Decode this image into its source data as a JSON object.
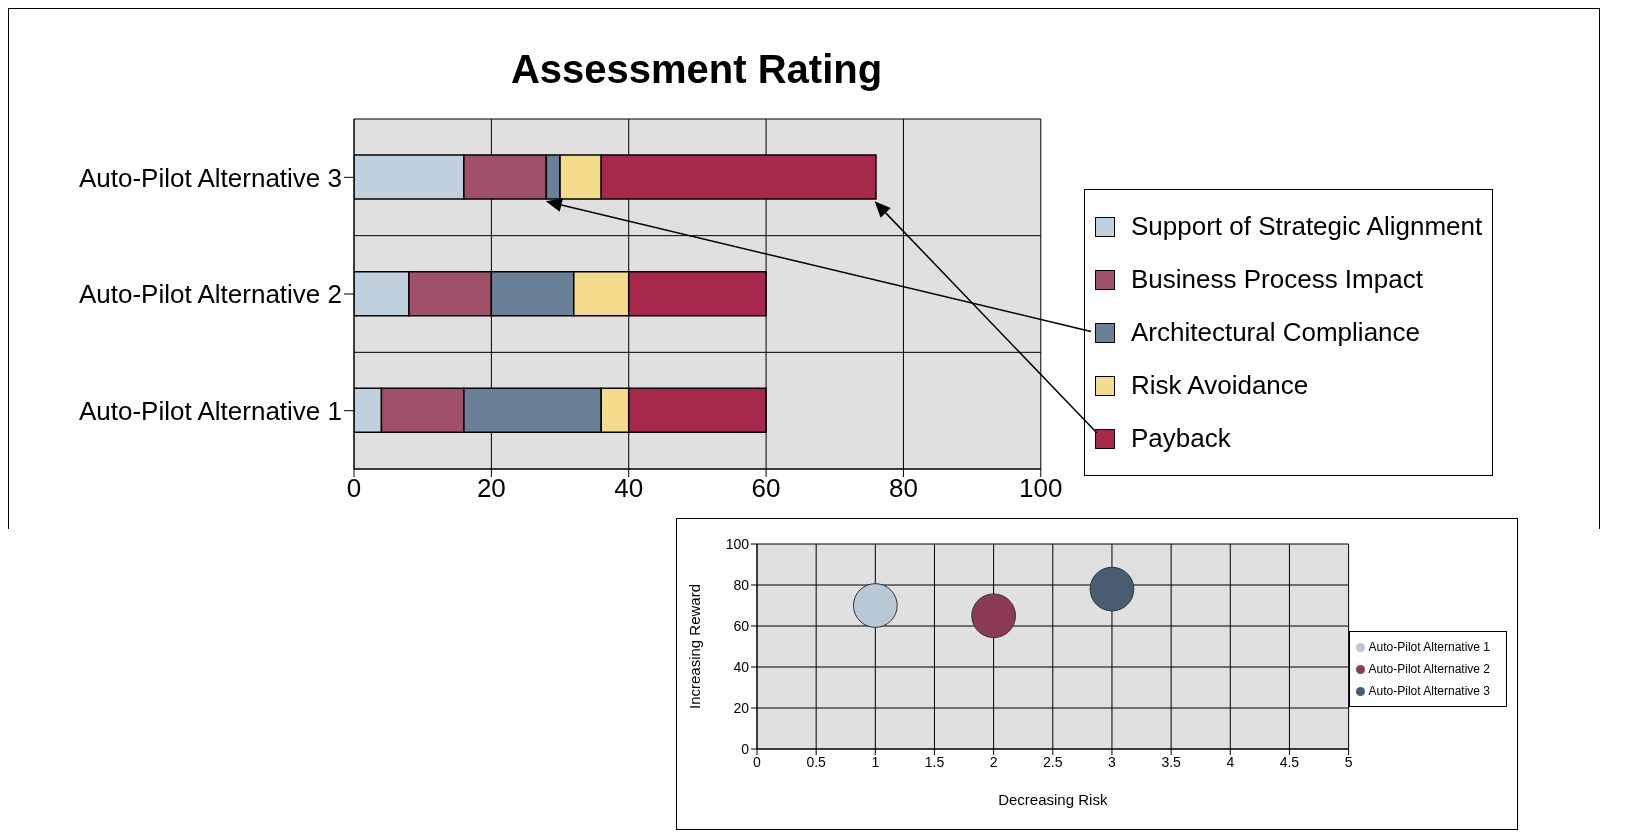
{
  "chart_data": [
    {
      "type": "bar",
      "orientation": "horizontal",
      "stacked": true,
      "title": "Assessment Rating",
      "categories": [
        "Auto-Pilot Alternative 3",
        "Auto-Pilot Alternative 2",
        "Auto-Pilot Alternative 1"
      ],
      "series": [
        {
          "name": "Support of Strategic Alignment",
          "color": "#c0d0dc",
          "values": [
            16,
            8,
            4
          ]
        },
        {
          "name": "Business Process Impact",
          "color": "#a05068",
          "values": [
            12,
            12,
            12
          ]
        },
        {
          "name": "Architectural Compliance",
          "color": "#6a8098",
          "values": [
            2,
            12,
            20
          ]
        },
        {
          "name": "Risk Avoidance",
          "color": "#f5dc8c",
          "values": [
            6,
            8,
            4
          ]
        },
        {
          "name": "Payback",
          "color": "#a8284c",
          "values": [
            40,
            20,
            20
          ]
        }
      ],
      "xlim": [
        0,
        100
      ],
      "xticks": [
        0,
        20,
        40,
        60,
        80,
        100
      ],
      "grid": true,
      "legend": "right"
    },
    {
      "type": "bubble",
      "xlabel": "Decreasing Risk",
      "ylabel": "Increasing Reward",
      "series": [
        {
          "name": "Auto-Pilot Alternative 1",
          "color": "#b8c8d4",
          "x": [
            1
          ],
          "values": [
            70
          ],
          "sizes": [
            1
          ]
        },
        {
          "name": "Auto-Pilot Alternative 2",
          "color": "#8c3a55",
          "x": [
            2
          ],
          "values": [
            65
          ],
          "sizes": [
            1
          ]
        },
        {
          "name": "Auto-Pilot Alternative 3",
          "color": "#4a5c70",
          "x": [
            3
          ],
          "values": [
            78
          ],
          "sizes": [
            1
          ]
        }
      ],
      "xlim": [
        0,
        5
      ],
      "xticks": [
        0,
        0.5,
        1,
        1.5,
        2,
        2.5,
        3,
        3.5,
        4,
        4.5,
        5
      ],
      "ylim": [
        0,
        100
      ],
      "yticks": [
        0,
        20,
        40,
        60,
        80,
        100
      ],
      "grid": true,
      "legend": "right"
    }
  ]
}
